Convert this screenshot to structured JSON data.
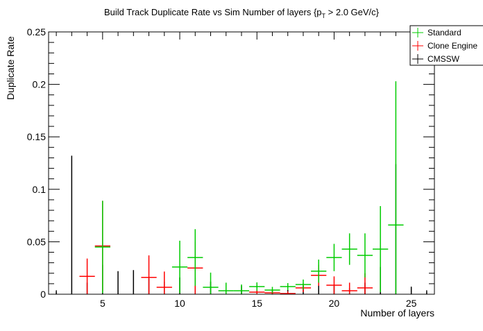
{
  "chart_data": {
    "type": "scatter",
    "title": "Build Track Duplicate Rate vs Sim Number of layers {p_T > 2.0 GeV/c}",
    "title_parts": {
      "pre": "Build Track Duplicate Rate vs Sim Number of layers {p",
      "sub": "T",
      "post": " > 2.0 GeV/c}"
    },
    "xlabel": "Number of layers",
    "ylabel": "Duplicate Rate",
    "xlim": [
      1.5,
      26.5
    ],
    "ylim": [
      0,
      0.25
    ],
    "x_ticks": [
      5,
      10,
      15,
      20,
      25
    ],
    "x_tick_labels": [
      "5",
      "10",
      "15",
      "20",
      "25"
    ],
    "y_ticks": [
      0,
      0.05,
      0.1,
      0.15,
      0.2,
      0.25
    ],
    "y_tick_labels": [
      "0",
      "0.05",
      "0.1",
      "0.15",
      "0.2",
      "0.25"
    ],
    "bin_width": 1,
    "legend_position": "top-right",
    "series": [
      {
        "name": "Standard",
        "color": "#00cc00",
        "points": [
          {
            "x": 5,
            "y": 0.045,
            "err": 0.044
          },
          {
            "x": 10,
            "y": 0.026,
            "err": 0.025
          },
          {
            "x": 11,
            "y": 0.035,
            "err": 0.027
          },
          {
            "x": 12,
            "y": 0.0066,
            "err": 0.014
          },
          {
            "x": 13,
            "y": 0.0033,
            "err": 0.0077
          },
          {
            "x": 14,
            "y": 0.0033,
            "err": 0.006
          },
          {
            "x": 15,
            "y": 0.0073,
            "err": 0.004
          },
          {
            "x": 16,
            "y": 0.004,
            "err": 0.003
          },
          {
            "x": 17,
            "y": 0.0073,
            "err": 0.0033
          },
          {
            "x": 18,
            "y": 0.0093,
            "err": 0.0047
          },
          {
            "x": 19,
            "y": 0.022,
            "err": 0.011
          },
          {
            "x": 20,
            "y": 0.035,
            "err": 0.013
          },
          {
            "x": 21,
            "y": 0.043,
            "err": 0.015
          },
          {
            "x": 22,
            "y": 0.037,
            "err": 0.021
          },
          {
            "x": 23,
            "y": 0.043,
            "err": 0.041
          },
          {
            "x": 24,
            "y": 0.066,
            "err": 0.137
          }
        ]
      },
      {
        "name": "Clone Engine",
        "color": "#ff0000",
        "points": [
          {
            "x": 4,
            "y": 0.017,
            "err": 0.017
          },
          {
            "x": 5,
            "y": 0.046,
            "err": 0.043
          },
          {
            "x": 8,
            "y": 0.016,
            "err": 0.021
          },
          {
            "x": 9,
            "y": 0.0066,
            "err": 0.015
          },
          {
            "x": 11,
            "y": 0.025,
            "err": 0.025
          },
          {
            "x": 15,
            "y": 0.002,
            "err": 0.003
          },
          {
            "x": 16,
            "y": 0.0013,
            "err": 0.002
          },
          {
            "x": 17,
            "y": 0.0007,
            "err": 0.002
          },
          {
            "x": 18,
            "y": 0.006,
            "err": 0.004
          },
          {
            "x": 19,
            "y": 0.018,
            "err": 0.01
          },
          {
            "x": 20,
            "y": 0.0086,
            "err": 0.0084
          },
          {
            "x": 21,
            "y": 0.0033,
            "err": 0.0077
          },
          {
            "x": 22,
            "y": 0.006,
            "err": 0.014
          }
        ]
      },
      {
        "name": "CMSSW",
        "color": "#000000",
        "points": [
          {
            "x": 2,
            "y": 0,
            "err": 0.003
          },
          {
            "x": 3,
            "y": 0,
            "err": 0.132
          },
          {
            "x": 4,
            "y": 0,
            "err": 0.011
          },
          {
            "x": 5,
            "y": 0,
            "err": 0.028
          },
          {
            "x": 6,
            "y": 0,
            "err": 0.022
          },
          {
            "x": 7,
            "y": 0,
            "err": 0.023
          },
          {
            "x": 8,
            "y": 0,
            "err": 0.015
          },
          {
            "x": 9,
            "y": 0,
            "err": 0.012
          },
          {
            "x": 10,
            "y": 0,
            "err": 0.016
          },
          {
            "x": 11,
            "y": 0,
            "err": 0.016
          },
          {
            "x": 12,
            "y": 0,
            "err": 0.012
          },
          {
            "x": 13,
            "y": 0,
            "err": 0.0087
          },
          {
            "x": 14,
            "y": 0,
            "err": 0.008
          },
          {
            "x": 15,
            "y": 0,
            "err": 0.006
          },
          {
            "x": 16,
            "y": 0,
            "err": 0.004
          },
          {
            "x": 17,
            "y": 0,
            "err": 0.004
          },
          {
            "x": 18,
            "y": 0,
            "err": 0.008
          },
          {
            "x": 19,
            "y": 0,
            "err": 0.0083
          },
          {
            "x": 20,
            "y": 0,
            "err": 0.008
          },
          {
            "x": 21,
            "y": 0,
            "err": 0.006
          },
          {
            "x": 22,
            "y": 0,
            "err": 0.011
          },
          {
            "x": 23,
            "y": 0,
            "err": 0.026
          },
          {
            "x": 24,
            "y": 0,
            "err": 0.124
          },
          {
            "x": 25,
            "y": 0,
            "err": 0.007
          },
          {
            "x": 26,
            "y": 0,
            "err": 0.003
          }
        ]
      }
    ]
  }
}
